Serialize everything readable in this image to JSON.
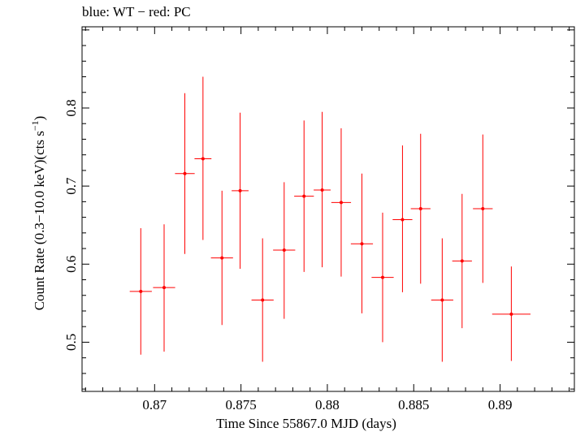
{
  "chart_data": {
    "type": "scatter",
    "title": "blue: WT − red: PC",
    "xlabel": "Time Since 55867.0 MJD (days)",
    "ylabel_main": "Count Rate (0.3−10.0 keV)(cts s",
    "ylabel_sup": "−1",
    "ylabel_tail": ")",
    "xlim": [
      0.8658,
      0.8943
    ],
    "ylim": [
      0.437,
      0.904
    ],
    "xticks": [
      0.87,
      0.875,
      0.88,
      0.885,
      0.89
    ],
    "xtick_labels": [
      "0.87",
      "0.875",
      "0.88",
      "0.885",
      "0.89"
    ],
    "yticks": [
      0.5,
      0.6,
      0.7,
      0.8
    ],
    "ytick_labels": [
      "0.5",
      "0.6",
      "0.7",
      "0.8"
    ],
    "series": [
      {
        "color": "#ff0000",
        "points": [
          {
            "x": 0.8692,
            "xerr": 0.00064,
            "y": 0.565,
            "ylo": 0.484,
            "yhi": 0.646
          },
          {
            "x": 0.87055,
            "xerr": 0.00064,
            "y": 0.57,
            "ylo": 0.488,
            "yhi": 0.651
          },
          {
            "x": 0.87175,
            "xerr": 0.00057,
            "y": 0.716,
            "ylo": 0.613,
            "yhi": 0.819
          },
          {
            "x": 0.8728,
            "xerr": 0.00049,
            "y": 0.735,
            "ylo": 0.631,
            "yhi": 0.84
          },
          {
            "x": 0.8739,
            "xerr": 0.00064,
            "y": 0.608,
            "ylo": 0.522,
            "yhi": 0.694
          },
          {
            "x": 0.87495,
            "xerr": 0.00049,
            "y": 0.694,
            "ylo": 0.594,
            "yhi": 0.794
          },
          {
            "x": 0.87625,
            "xerr": 0.00064,
            "y": 0.554,
            "ylo": 0.475,
            "yhi": 0.633
          },
          {
            "x": 0.8775,
            "xerr": 0.00064,
            "y": 0.618,
            "ylo": 0.53,
            "yhi": 0.705
          },
          {
            "x": 0.87865,
            "xerr": 0.00057,
            "y": 0.687,
            "ylo": 0.59,
            "yhi": 0.784
          },
          {
            "x": 0.8797,
            "xerr": 0.00049,
            "y": 0.695,
            "ylo": 0.596,
            "yhi": 0.795
          },
          {
            "x": 0.8808,
            "xerr": 0.00057,
            "y": 0.679,
            "ylo": 0.584,
            "yhi": 0.774
          },
          {
            "x": 0.882,
            "xerr": 0.00064,
            "y": 0.626,
            "ylo": 0.537,
            "yhi": 0.716
          },
          {
            "x": 0.8832,
            "xerr": 0.00064,
            "y": 0.583,
            "ylo": 0.5,
            "yhi": 0.666
          },
          {
            "x": 0.88435,
            "xerr": 0.00057,
            "y": 0.657,
            "ylo": 0.564,
            "yhi": 0.752
          },
          {
            "x": 0.8854,
            "xerr": 0.00057,
            "y": 0.671,
            "ylo": 0.575,
            "yhi": 0.767
          },
          {
            "x": 0.88665,
            "xerr": 0.00064,
            "y": 0.554,
            "ylo": 0.475,
            "yhi": 0.633
          },
          {
            "x": 0.8878,
            "xerr": 0.00057,
            "y": 0.604,
            "ylo": 0.518,
            "yhi": 0.69
          },
          {
            "x": 0.889,
            "xerr": 0.00057,
            "y": 0.671,
            "ylo": 0.576,
            "yhi": 0.766
          },
          {
            "x": 0.89065,
            "xerr": 0.00111,
            "y": 0.536,
            "ylo": 0.476,
            "yhi": 0.597
          }
        ]
      }
    ]
  }
}
